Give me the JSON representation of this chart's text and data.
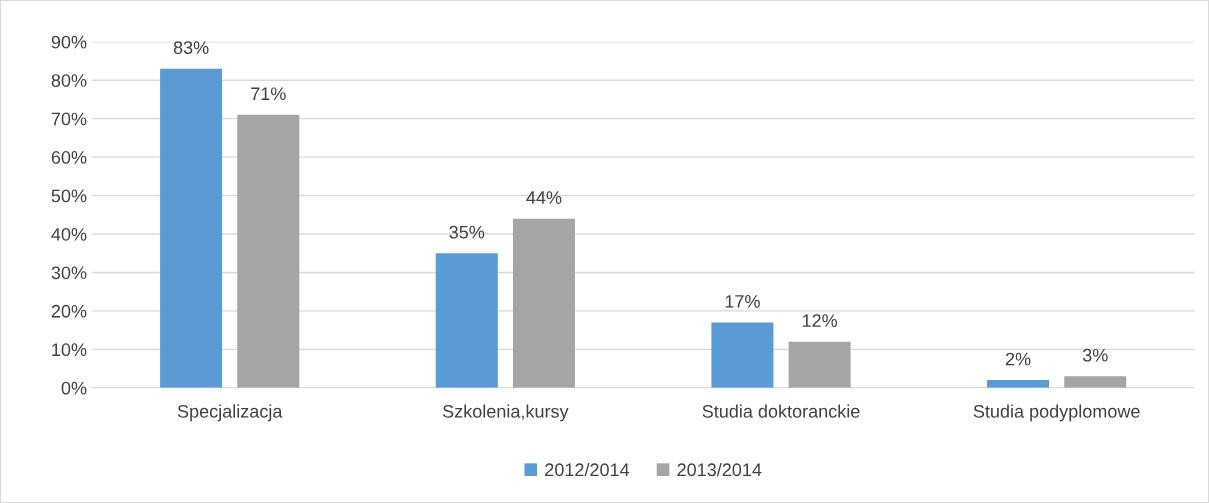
{
  "chart_data": {
    "type": "bar",
    "categories": [
      "Specjalizacja",
      "Szkolenia,kursy",
      "Studia doktoranckie",
      "Studia podyplomowe"
    ],
    "series": [
      {
        "name": "2012/2014",
        "color": "#5b9bd5",
        "values": [
          83,
          35,
          17,
          2
        ],
        "value_labels": [
          "83%",
          "35%",
          "17%",
          "2%"
        ]
      },
      {
        "name": "2013/2014",
        "color": "#a5a5a5",
        "values": [
          71,
          44,
          12,
          3
        ],
        "value_labels": [
          "71%",
          "44%",
          "12%",
          "3%"
        ]
      }
    ],
    "ylim": [
      0,
      90
    ],
    "yticks": [
      {
        "value": 0,
        "label": "0%"
      },
      {
        "value": 10,
        "label": "10%"
      },
      {
        "value": 20,
        "label": "20%"
      },
      {
        "value": 30,
        "label": "30%"
      },
      {
        "value": 40,
        "label": "40%"
      },
      {
        "value": 50,
        "label": "50%"
      },
      {
        "value": 60,
        "label": "60%"
      },
      {
        "value": 70,
        "label": "70%"
      },
      {
        "value": 80,
        "label": "80%"
      },
      {
        "value": 90,
        "label": "90%"
      }
    ],
    "grid": "y",
    "legend": "bottom"
  }
}
